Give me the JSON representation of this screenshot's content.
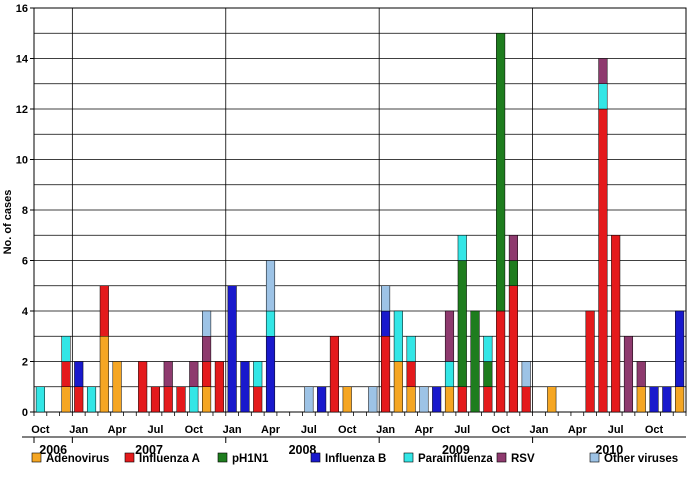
{
  "chart_data": {
    "type": "bar",
    "stacked": true,
    "title": "",
    "xlabel": "",
    "ylabel": "No. of cases",
    "ylim": [
      0,
      16
    ],
    "yticks": [
      0,
      2,
      4,
      6,
      8,
      10,
      12,
      14,
      16
    ],
    "grid": "horizontal",
    "legend_position": "bottom",
    "x_start": "2006-10",
    "months_shown": 51,
    "x_tick_labels": [
      {
        "month": "2006-10",
        "label": "Oct"
      },
      {
        "month": "2007-01",
        "label": "Jan"
      },
      {
        "month": "2007-04",
        "label": "Apr"
      },
      {
        "month": "2007-07",
        "label": "Jul"
      },
      {
        "month": "2007-10",
        "label": "Oct"
      },
      {
        "month": "2008-01",
        "label": "Jan"
      },
      {
        "month": "2008-04",
        "label": "Apr"
      },
      {
        "month": "2008-07",
        "label": "Jul"
      },
      {
        "month": "2008-10",
        "label": "Oct"
      },
      {
        "month": "2009-01",
        "label": "Jan"
      },
      {
        "month": "2009-04",
        "label": "Apr"
      },
      {
        "month": "2009-07",
        "label": "Jul"
      },
      {
        "month": "2009-10",
        "label": "Oct"
      },
      {
        "month": "2010-01",
        "label": "Jan"
      },
      {
        "month": "2010-04",
        "label": "Apr"
      },
      {
        "month": "2010-07",
        "label": "Jul"
      },
      {
        "month": "2010-10",
        "label": "Oct"
      }
    ],
    "year_labels": [
      {
        "label": "2006",
        "from": "2006-10",
        "to": "2006-12"
      },
      {
        "label": "2007",
        "from": "2007-01",
        "to": "2007-12"
      },
      {
        "label": "2008",
        "from": "2008-01",
        "to": "2008-12"
      },
      {
        "label": "2009",
        "from": "2009-01",
        "to": "2009-12"
      },
      {
        "label": "2010",
        "from": "2010-01",
        "to": "2010-12"
      }
    ],
    "series": [
      {
        "name": "Adenovirus",
        "color": "#F5A623",
        "points": [
          [
            "2006-12",
            1
          ],
          [
            "2007-03",
            3
          ],
          [
            "2007-04",
            2
          ],
          [
            "2007-11",
            1
          ],
          [
            "2008-10",
            1
          ],
          [
            "2009-02",
            2
          ],
          [
            "2009-03",
            1
          ],
          [
            "2009-06",
            1
          ],
          [
            "2010-02",
            1
          ],
          [
            "2010-09",
            1
          ],
          [
            "2010-12",
            1
          ]
        ]
      },
      {
        "name": "Influenza A",
        "color": "#E41A1C",
        "points": [
          [
            "2006-12",
            1
          ],
          [
            "2007-01",
            1
          ],
          [
            "2007-03",
            2
          ],
          [
            "2007-06",
            2
          ],
          [
            "2007-07",
            1
          ],
          [
            "2007-08",
            1
          ],
          [
            "2007-09",
            1
          ],
          [
            "2007-11",
            1
          ],
          [
            "2007-12",
            2
          ],
          [
            "2008-03",
            1
          ],
          [
            "2008-09",
            3
          ],
          [
            "2009-01",
            3
          ],
          [
            "2009-03",
            1
          ],
          [
            "2009-07",
            1
          ],
          [
            "2009-09",
            1
          ],
          [
            "2009-10",
            4
          ],
          [
            "2009-11",
            5
          ],
          [
            "2009-12",
            1
          ],
          [
            "2010-05",
            4
          ],
          [
            "2010-06",
            12
          ],
          [
            "2010-07",
            7
          ]
        ]
      },
      {
        "name": "pH1N1",
        "color": "#1E7D1E",
        "points": [
          [
            "2009-07",
            5
          ],
          [
            "2009-08",
            4
          ],
          [
            "2009-09",
            1
          ],
          [
            "2009-10",
            11
          ],
          [
            "2009-11",
            1
          ]
        ]
      },
      {
        "name": "Influenza B",
        "color": "#1919CC",
        "points": [
          [
            "2007-01",
            1
          ],
          [
            "2008-01",
            5
          ],
          [
            "2008-02",
            2
          ],
          [
            "2008-04",
            3
          ],
          [
            "2008-08",
            1
          ],
          [
            "2009-01",
            1
          ],
          [
            "2009-05",
            1
          ],
          [
            "2010-10",
            1
          ],
          [
            "2010-11",
            1
          ],
          [
            "2010-12",
            3
          ]
        ]
      },
      {
        "name": "Parainfluenza",
        "color": "#33E6E6",
        "points": [
          [
            "2006-10",
            1
          ],
          [
            "2006-12",
            1
          ],
          [
            "2007-02",
            1
          ],
          [
            "2007-10",
            1
          ],
          [
            "2008-03",
            1
          ],
          [
            "2008-04",
            1
          ],
          [
            "2009-02",
            2
          ],
          [
            "2009-03",
            1
          ],
          [
            "2009-06",
            1
          ],
          [
            "2009-07",
            1
          ],
          [
            "2009-09",
            1
          ],
          [
            "2010-06",
            1
          ]
        ]
      },
      {
        "name": "RSV",
        "color": "#8E3A6E",
        "points": [
          [
            "2007-08",
            1
          ],
          [
            "2007-10",
            1
          ],
          [
            "2007-11",
            1
          ],
          [
            "2009-06",
            2
          ],
          [
            "2009-11",
            1
          ],
          [
            "2010-06",
            1
          ],
          [
            "2010-08",
            3
          ],
          [
            "2010-09",
            1
          ]
        ]
      },
      {
        "name": "Other viruses",
        "color": "#9DC3E6",
        "points": [
          [
            "2007-11",
            1
          ],
          [
            "2008-04",
            2
          ],
          [
            "2008-07",
            1
          ],
          [
            "2008-12",
            1
          ],
          [
            "2009-01",
            1
          ],
          [
            "2009-04",
            1
          ],
          [
            "2009-12",
            1
          ]
        ]
      }
    ]
  }
}
